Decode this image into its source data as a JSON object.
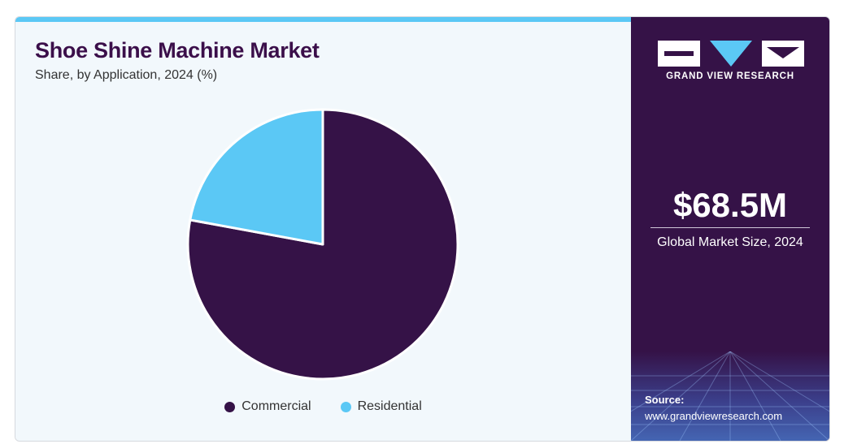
{
  "chart_data": {
    "type": "pie",
    "title": "Shoe Shine Machine Market",
    "subtitle": "Share, by Application, 2024 (%)",
    "series": [
      {
        "name": "Commercial",
        "value": 77.9,
        "color": "#351247"
      },
      {
        "name": "Residential",
        "value": 22.1,
        "color": "#5bc8f5"
      }
    ],
    "legend": "bottom"
  },
  "sidebar": {
    "brand": "GRAND VIEW RESEARCH",
    "value": "$68.5M",
    "caption": "Global Market Size, 2024",
    "source_label": "Source:",
    "source_url": "www.grandviewresearch.com"
  },
  "colors": {
    "primary": "#351247",
    "accent": "#5bc8f5",
    "panel_bg": "#f2f8fc"
  }
}
